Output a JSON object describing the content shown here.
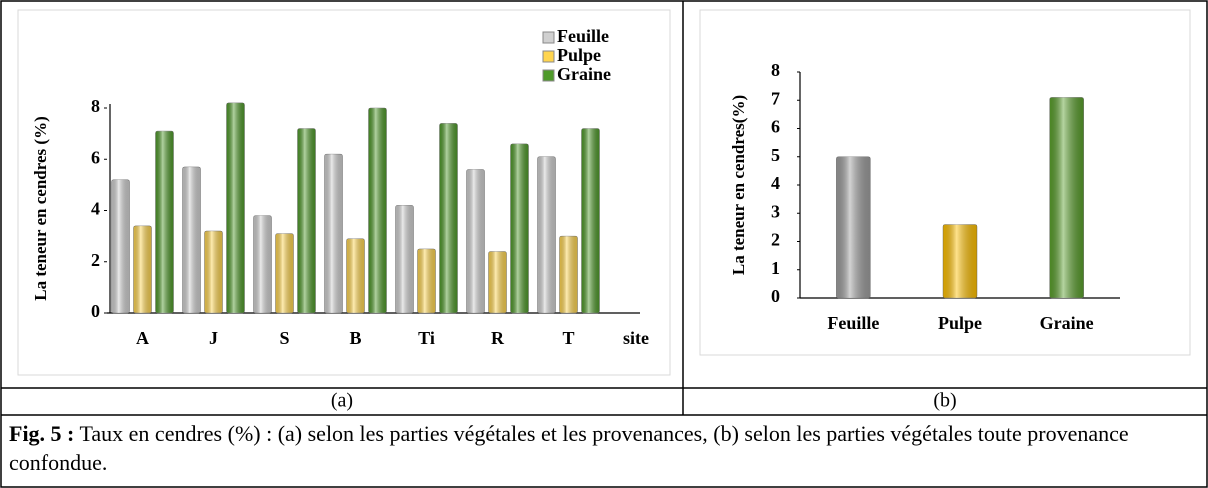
{
  "chart_data": [
    {
      "type": "bar",
      "ylabel": "La teneur en cendres (%)",
      "xlabel": "site",
      "categories": [
        "A",
        "J",
        "S",
        "B",
        "Ti",
        "R",
        "T"
      ],
      "series": [
        {
          "name": "Feuille",
          "color": "#d0d0d0",
          "values": [
            5.2,
            5.7,
            3.8,
            6.2,
            4.2,
            5.6,
            6.1
          ]
        },
        {
          "name": "Pulpe",
          "color": "#ffd54f",
          "values": [
            3.4,
            3.2,
            3.1,
            2.9,
            2.5,
            2.4,
            3.0
          ]
        },
        {
          "name": "Graine",
          "color": "#4f9a2a",
          "values": [
            7.1,
            8.2,
            7.2,
            8.0,
            7.4,
            6.6,
            7.2
          ]
        }
      ],
      "ylim": [
        0,
        8.4
      ],
      "yticks": [
        0,
        2,
        4,
        6,
        8
      ],
      "legend": "upper right"
    },
    {
      "type": "bar",
      "ylabel": "La teneur en cendres(%)",
      "categories": [
        "Feuille",
        "Pulpe",
        "Graine"
      ],
      "values": [
        5.0,
        2.6,
        7.1
      ],
      "colors": [
        "#9e9e9e",
        "#ffc000",
        "#5aa02c"
      ],
      "ylim": [
        0,
        8
      ],
      "yticks": [
        0,
        1,
        2,
        3,
        4,
        5,
        6,
        7,
        8
      ]
    }
  ],
  "panel_labels": [
    "(a)",
    "(b)"
  ],
  "caption": {
    "label": "Fig. 5 :",
    "text": "Taux en cendres (%) : (a) selon les parties végétales et les provenances, (b) selon les parties végétales toute provenance confondue."
  }
}
